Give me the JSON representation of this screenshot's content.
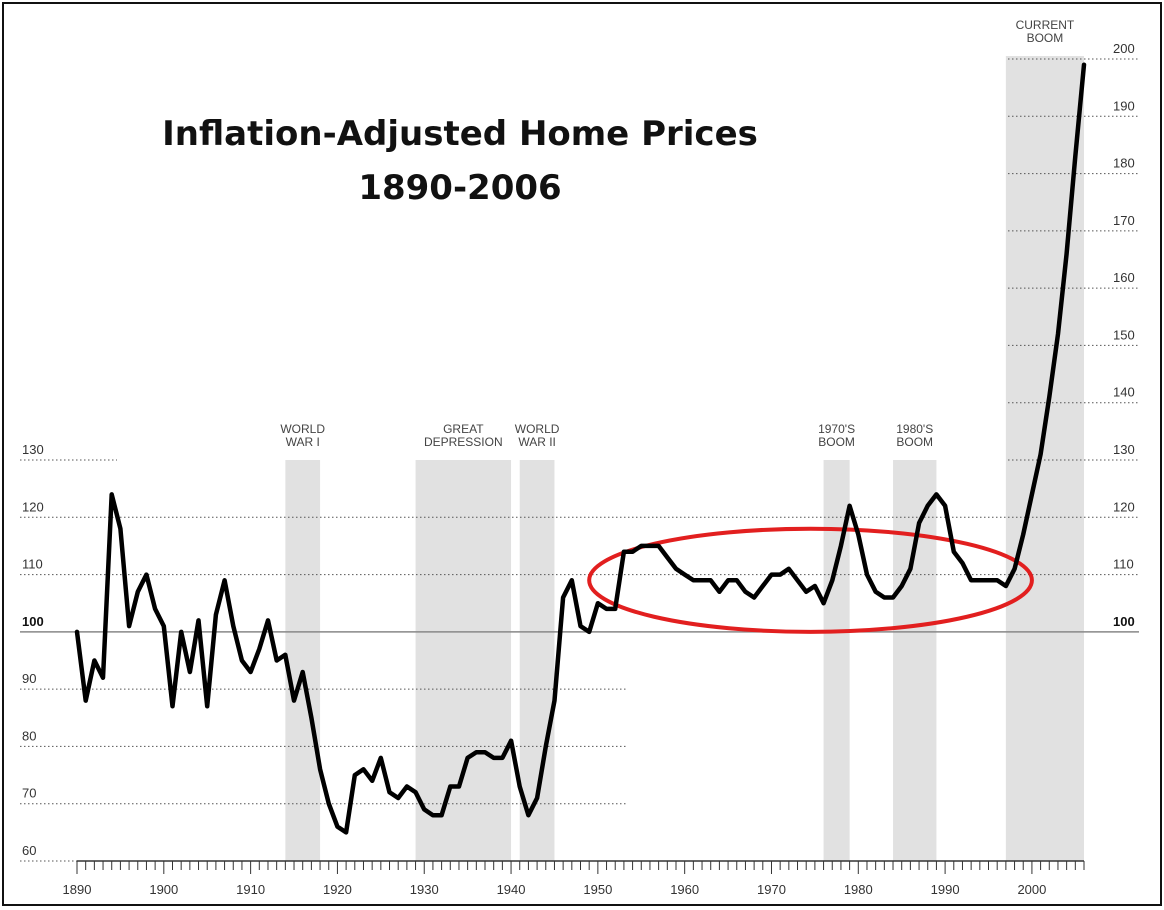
{
  "chart_data": {
    "type": "line",
    "title_line1": "Inflation-Adjusted Home Prices",
    "title_line2": "1890-2006",
    "xlabel": "",
    "ylabel": "",
    "xlim": [
      1890,
      2006
    ],
    "ylim": [
      60,
      200
    ],
    "x_ticks": [
      1890,
      1900,
      1910,
      1920,
      1930,
      1940,
      1950,
      1960,
      1970,
      1980,
      1990,
      2000
    ],
    "y_ticks_left": [
      60,
      70,
      80,
      90,
      100,
      110,
      120,
      130
    ],
    "y_ticks_right": [
      100,
      110,
      120,
      130,
      140,
      150,
      160,
      170,
      180,
      190,
      200
    ],
    "bold_tick": 100,
    "eras": [
      {
        "label_lines": [
          "WORLD",
          "WAR I"
        ],
        "start": 1914,
        "end": 1918
      },
      {
        "label_lines": [
          "GREAT",
          "DEPRESSION"
        ],
        "start": 1929,
        "end": 1940
      },
      {
        "label_lines": [
          "WORLD",
          "WAR II"
        ],
        "start": 1941,
        "end": 1945
      },
      {
        "label_lines": [
          "1970'S",
          "BOOM"
        ],
        "start": 1976,
        "end": 1979
      },
      {
        "label_lines": [
          "1980'S",
          "BOOM"
        ],
        "start": 1984,
        "end": 1989
      },
      {
        "label_lines": [
          "CURRENT",
          "BOOM"
        ],
        "start": 1997,
        "end": 2006
      }
    ],
    "highlight_ellipse": {
      "color": "#e21f1f",
      "x_range": [
        1949,
        2000
      ],
      "y_range": [
        100,
        118
      ]
    },
    "series": [
      {
        "color": "#000000",
        "x": [
          1890,
          1891,
          1892,
          1893,
          1894,
          1895,
          1896,
          1897,
          1898,
          1899,
          1900,
          1901,
          1902,
          1903,
          1904,
          1905,
          1906,
          1907,
          1908,
          1909,
          1910,
          1911,
          1912,
          1913,
          1914,
          1915,
          1916,
          1917,
          1918,
          1919,
          1920,
          1921,
          1922,
          1923,
          1924,
          1925,
          1926,
          1927,
          1928,
          1929,
          1930,
          1931,
          1932,
          1933,
          1934,
          1935,
          1936,
          1937,
          1938,
          1939,
          1940,
          1941,
          1942,
          1943,
          1944,
          1945,
          1946,
          1947,
          1948,
          1949,
          1950,
          1951,
          1952,
          1953,
          1954,
          1955,
          1956,
          1957,
          1958,
          1959,
          1960,
          1961,
          1962,
          1963,
          1964,
          1965,
          1966,
          1967,
          1968,
          1969,
          1970,
          1971,
          1972,
          1973,
          1974,
          1975,
          1976,
          1977,
          1978,
          1979,
          1980,
          1981,
          1982,
          1983,
          1984,
          1985,
          1986,
          1987,
          1988,
          1989,
          1990,
          1991,
          1992,
          1993,
          1994,
          1995,
          1996,
          1997,
          1998,
          1999,
          2000,
          2001,
          2002,
          2003,
          2004,
          2005,
          2006
        ],
        "y": [
          100,
          88,
          95,
          92,
          124,
          118,
          101,
          107,
          110,
          104,
          101,
          87,
          100,
          93,
          102,
          87,
          103,
          109,
          101,
          95,
          93,
          97,
          102,
          95,
          96,
          88,
          93,
          85,
          76,
          70,
          66,
          65,
          75,
          76,
          74,
          78,
          72,
          71,
          73,
          72,
          69,
          68,
          68,
          73,
          73,
          78,
          79,
          79,
          78,
          78,
          81,
          73,
          68,
          71,
          80,
          88,
          106,
          109,
          101,
          100,
          105,
          104,
          104,
          114,
          114,
          115,
          115,
          115,
          113,
          111,
          110,
          109,
          109,
          109,
          107,
          109,
          109,
          107,
          106,
          108,
          110,
          110,
          111,
          109,
          107,
          108,
          105,
          109,
          115,
          122,
          117,
          110,
          107,
          106,
          106,
          108,
          111,
          119,
          122,
          124,
          122,
          114,
          112,
          109,
          109,
          109,
          109,
          108,
          111,
          117,
          124,
          131,
          141,
          152,
          166,
          183,
          199
        ]
      }
    ]
  }
}
